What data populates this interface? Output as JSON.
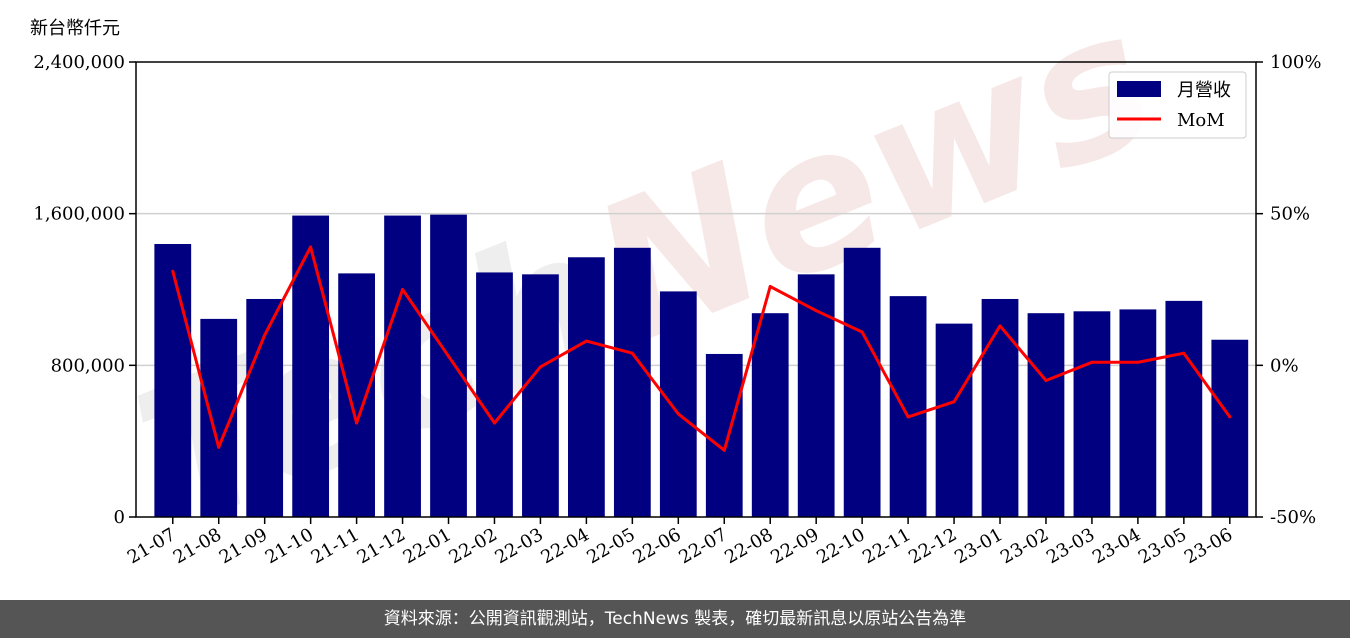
{
  "watermark": {
    "prefix": "Tech",
    "suffix": "News"
  },
  "unit_label": "新台幣仟元",
  "footer": {
    "text": "資料來源：公開資訊觀測站，TechNews 製表，確切最新訊息以原站公告為準"
  },
  "colors": {
    "bar": "#000080",
    "line": "#ff0000",
    "grid": "#d0d0d0"
  },
  "chart_data": {
    "type": "bar",
    "categories": [
      "21-07",
      "21-08",
      "21-09",
      "21-10",
      "21-11",
      "21-12",
      "22-01",
      "22-02",
      "22-03",
      "22-04",
      "22-05",
      "22-06",
      "22-07",
      "22-08",
      "22-09",
      "22-10",
      "22-11",
      "22-12",
      "23-01",
      "23-02",
      "23-03",
      "23-04",
      "23-05",
      "23-06"
    ],
    "series": [
      {
        "name": "月營收",
        "axis": "left",
        "type": "bar",
        "values": [
          1440000,
          1045000,
          1150000,
          1590000,
          1285000,
          1590000,
          1595000,
          1290000,
          1280000,
          1370000,
          1420000,
          1190000,
          860000,
          1075000,
          1280000,
          1420000,
          1165000,
          1020000,
          1150000,
          1075000,
          1085000,
          1095000,
          1140000,
          935000
        ]
      },
      {
        "name": "MoM",
        "axis": "right",
        "type": "line",
        "unit": "%",
        "values": [
          31,
          -27,
          10,
          39,
          -19,
          25,
          3,
          -19,
          -0.5,
          8,
          4,
          -16,
          -28,
          26,
          18,
          11,
          -17,
          -12,
          13,
          -5,
          1,
          1,
          4,
          -17
        ]
      }
    ],
    "yleft": {
      "ticks": [
        "0",
        "800,000",
        "1,600,000",
        "2,400,000"
      ],
      "tick_values": [
        0,
        800000,
        1600000,
        2400000
      ],
      "ylim": [
        0,
        2400000
      ]
    },
    "yright": {
      "ticks": [
        "-50%",
        "0%",
        "50%",
        "100%"
      ],
      "tick_values": [
        -50,
        0,
        50,
        100
      ],
      "ylim": [
        -50,
        100
      ]
    },
    "grid": "horizontal",
    "legend": "top-right"
  }
}
